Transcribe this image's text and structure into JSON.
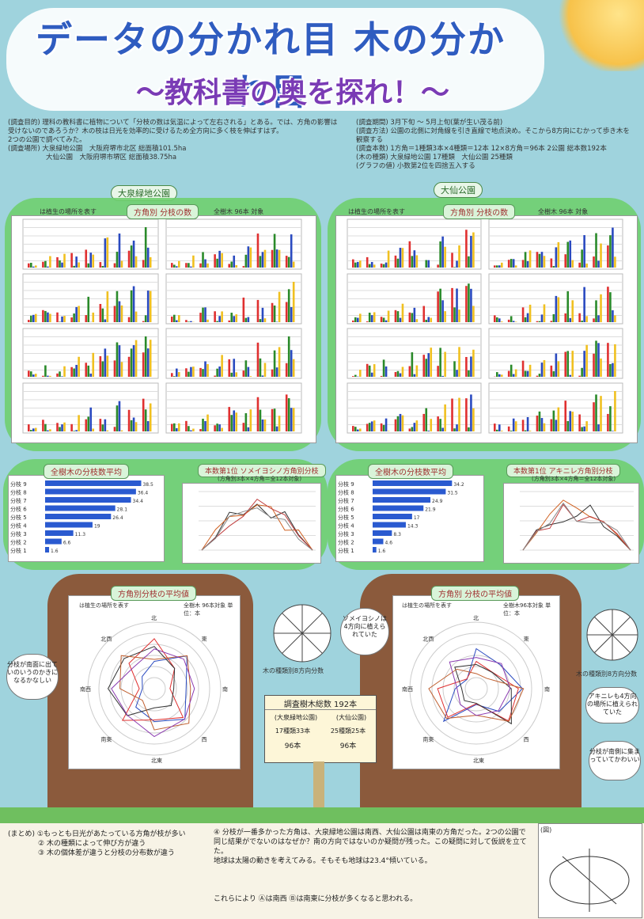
{
  "title": {
    "main": "データの分かれ目 木の分かれ目",
    "sub": "〜教科書の奥を探れ！〜"
  },
  "info": {
    "purpose_label": "(調査目的)",
    "purpose_text": "理科の教科書に植物について「分枝の数は気温によって左右される」とある。では、方角の影響は受けないのであろうか？木の枝は日光を効率的に受けるため全方向に多く枝を伸ばすはず。",
    "purpose_text2": "2つの公園で調べてみた。",
    "place_label": "(調査場所)",
    "place1": "大泉緑地公園　大阪府堺市北区 総面積101.5ha",
    "place2": "大仙公園　大阪府堺市堺区 総面積38.75ha",
    "period_label": "(調査期間)",
    "period": "3月下旬 〜 5月上旬(葉が生い茂る前)",
    "method_label": "(調査方法)",
    "method": "公園の北側に対角線を引き直線で地点決め。そこから8方向にむかって歩き木を観察する",
    "count_label": "(調査本数)",
    "count": "1方角＝1種類3本×4種類＝12本 12×8方角＝96本 2公園 総本数192本",
    "tree_label": "(木の種類)",
    "tree": "大泉緑地公園 17種類　大仙公園 25種類",
    "graph_label": "(グラフの値)",
    "graph": "小数第2位を四捨五入する"
  },
  "parks": {
    "left": "大泉緑地公園",
    "right": "大仙公園"
  },
  "left_top": {
    "note": "は植生の場所を表す",
    "header": "方角別 分枝の数",
    "target": "全樹木 96本 対象"
  },
  "right_top": {
    "note": "は植生の場所を表す",
    "header": "方角別 分枝の数",
    "target": "全樹木 96本 対象"
  },
  "directions": [
    "北",
    "東",
    "南",
    "西",
    "北東",
    "南東",
    "南西",
    "北西"
  ],
  "left_mid": {
    "header1": "全樹木の分枝数平均",
    "header2": "本数第1位 ソメイヨシノ方角別分枝",
    "sub2": "(方角別3本×4方角＝全12本対象)"
  },
  "right_mid": {
    "header1": "全樹木の分枝数平均",
    "header2": "本数第1位 アキニレ方角別分枝",
    "sub2": "(方角別3本×4方角＝全12本対象)"
  },
  "bars_left": {
    "labels": [
      "分枝 9",
      "分枝 8",
      "分枝 7",
      "分枝 6",
      "分枝 5",
      "分枝 4",
      "分枝 3",
      "分枝 2",
      "分枝 1"
    ],
    "values": [
      38.5,
      36.4,
      34.4,
      28.1,
      26.4,
      19.0,
      11.3,
      6.6,
      1.6
    ]
  },
  "bars_right": {
    "labels": [
      "分枝 9",
      "分枝 8",
      "分枝 7",
      "分枝 6",
      "分枝 5",
      "分枝 4",
      "分枝 3",
      "分枝 2",
      "分枝 1"
    ],
    "values": [
      34.2,
      31.5,
      24.9,
      21.9,
      17.0,
      14.3,
      8.3,
      4.6,
      1.6
    ]
  },
  "radar_left": {
    "header": "方角別分枝の平均値",
    "note": "は植生の場所を表す",
    "target": "全樹木 96本対象 単位：本"
  },
  "radar_right": {
    "header": "方角別 分枝の平均値",
    "note": "は植生の場所を表す",
    "target": "全樹木96本対象 単位：本"
  },
  "pie_left": {
    "label": "木の種類別8方向分数",
    "note": "ソメイヨシノは4方向に植えられていた"
  },
  "pie_right": {
    "label": "木の種類別8方向分数",
    "note": "アキニレも4方向の場所に植えられていた"
  },
  "sign": {
    "title": "調査樹木総数 192本",
    "left_park": "(大泉緑地公園)",
    "right_park": "(大仙公園)",
    "left_types": "17種類33本",
    "right_types": "25種類25本",
    "left_total": "96本",
    "right_total": "96本"
  },
  "bubble_left": "分枝が南面に出ていのいうのかきになるかなしい",
  "bubble_right": "分枝が南側に集まっていてかわいい",
  "summary": {
    "label": "(まとめ)",
    "s1": "①もっとも日光があたっている方角が枝が多い",
    "s2": "② 木の種類によって伸び方が違う",
    "s3": "③ 木の個体差が違うと分枝の分布数が違う",
    "s4": "④ 分枝が一番多かった方角は、大泉緑地公園は南西、大仙公園は南東の方角だった。2つの公園で",
    "s5": "同じ結果がでないのはなぜか？南の方向ではないのか疑問が残った。この疑問に対して仮説を立てた。",
    "s6": "地球は太陽の動きを考えてみる。そもそも地球は23.4°傾いている。",
    "s7": "これらにより Ⓐは南西 Ⓑは南東に分枝が多くなると思われる。",
    "figure_label": "(図)"
  }
}
